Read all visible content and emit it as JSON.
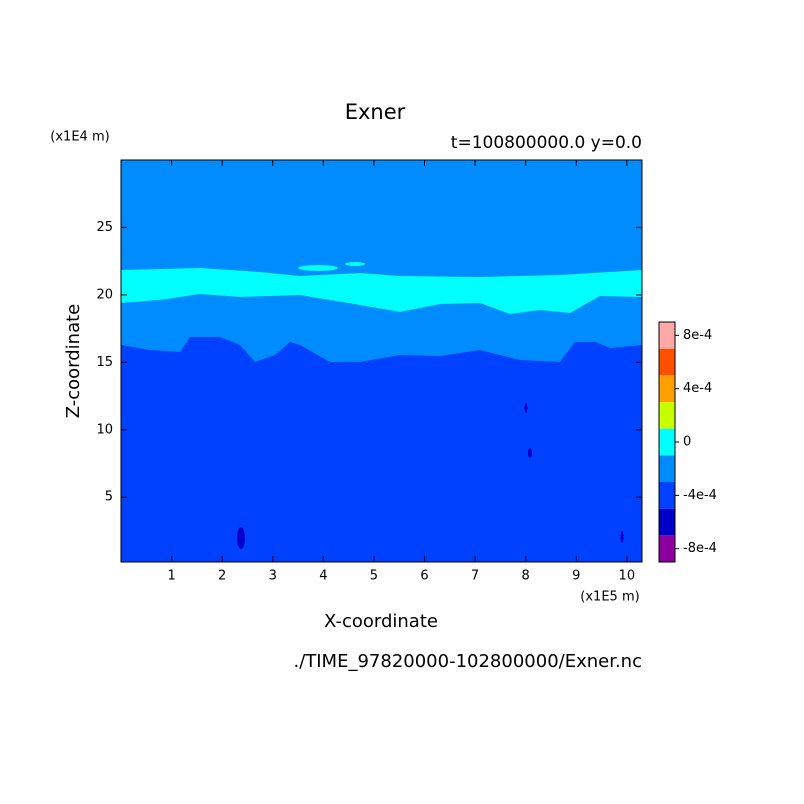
{
  "chart_data": {
    "type": "contour",
    "title": "Exner",
    "subtitle": "t=100800000.0 y=0.0",
    "x_label": "X-coordinate",
    "y_label": "Z-coordinate",
    "x_unit": "(x1E5 m)",
    "y_unit": "(x1E4 m)",
    "footer": "./TIME_97820000-102800000/Exner.nc",
    "xlim": [
      0,
      10.3
    ],
    "xticks": [
      1,
      2,
      3,
      4,
      5,
      6,
      7,
      8,
      9,
      10
    ],
    "ylim": [
      0.2,
      30
    ],
    "yticks": [
      5,
      10,
      15,
      20,
      25
    ],
    "colorbar": {
      "lim": [
        -0.0009,
        0.0009
      ],
      "colors": [
        "#8c00a0",
        "#0000c8",
        "#0040ff",
        "#008cff",
        "#00ffff",
        "#c8ff00",
        "#ffa000",
        "#ff5000",
        "#ffa8a8"
      ],
      "ticks": [
        {
          "value": -0.0008,
          "label": "-8e-4"
        },
        {
          "value": -0.0004,
          "label": "-4e-4"
        },
        0,
        {
          "value": 0.0004,
          "label": "4e-4"
        },
        {
          "value": 0.0008,
          "label": "8e-4"
        }
      ]
    }
  }
}
